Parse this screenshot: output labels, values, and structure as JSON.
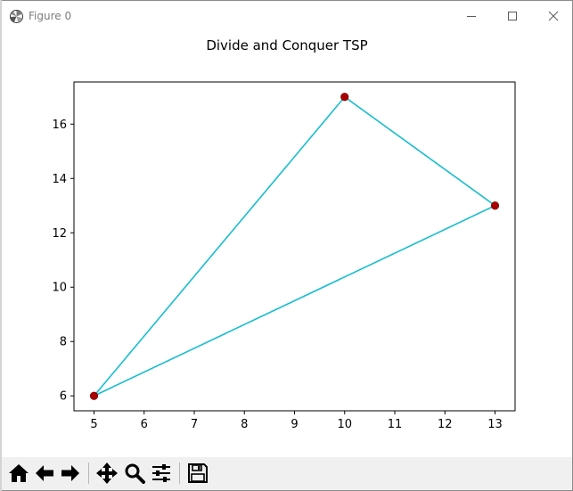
{
  "window": {
    "title": "Figure 0",
    "controls": {
      "minimize": "minimize",
      "maximize": "maximize",
      "close": "close"
    }
  },
  "toolbar": {
    "buttons": [
      {
        "name": "home",
        "icon": "home-icon"
      },
      {
        "name": "back",
        "icon": "arrow-left-icon"
      },
      {
        "name": "forward",
        "icon": "arrow-right-icon"
      },
      {
        "name": "pan",
        "icon": "move-icon"
      },
      {
        "name": "zoom",
        "icon": "magnifier-icon"
      },
      {
        "name": "configure-subplots",
        "icon": "sliders-icon"
      },
      {
        "name": "save",
        "icon": "floppy-disk-icon"
      }
    ]
  },
  "colors": {
    "line": "#17becf",
    "marker": "#aa0000",
    "marker_edge": "#800000"
  },
  "chart_data": {
    "type": "line",
    "title": "Divide and Conquer TSP",
    "xlabel": "",
    "ylabel": "",
    "xlim": [
      4.6,
      13.4
    ],
    "ylim": [
      5.45,
      17.55
    ],
    "xticks": [
      5,
      6,
      7,
      8,
      9,
      10,
      11,
      12,
      13
    ],
    "yticks": [
      6,
      8,
      10,
      12,
      14,
      16
    ],
    "grid": false,
    "series": [
      {
        "x": [
          5,
          10,
          13,
          5
        ],
        "y": [
          6,
          17,
          13,
          6
        ]
      }
    ],
    "points": [
      {
        "x": 10,
        "y": 17
      },
      {
        "x": 13,
        "y": 13
      },
      {
        "x": 5,
        "y": 6
      }
    ]
  }
}
